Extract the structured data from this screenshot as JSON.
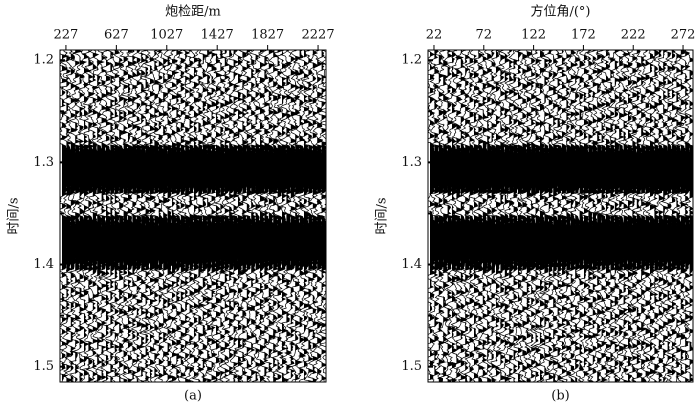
{
  "chart_data": [
    {
      "type": "wiggle",
      "xlabel": "炮检距/m",
      "ylabel": "时间/s",
      "caption": "(a)",
      "xlim": [
        180,
        2290
      ],
      "xticks": [
        227,
        627,
        1027,
        1427,
        1827,
        2227
      ],
      "ylim": [
        1.19,
        1.515
      ],
      "yticks": [
        1.2,
        1.3,
        1.4,
        1.5
      ],
      "color": "#000000"
    },
    {
      "type": "wiggle",
      "xlabel": "方位角/(°)",
      "ylabel": "时间/s",
      "caption": "(b)",
      "xlim": [
        16,
        282
      ],
      "xticks": [
        22,
        72,
        122,
        172,
        222,
        272
      ],
      "ylim": [
        1.19,
        1.515
      ],
      "yticks": [
        1.2,
        1.3,
        1.4,
        1.5
      ],
      "color": "#000000"
    }
  ]
}
